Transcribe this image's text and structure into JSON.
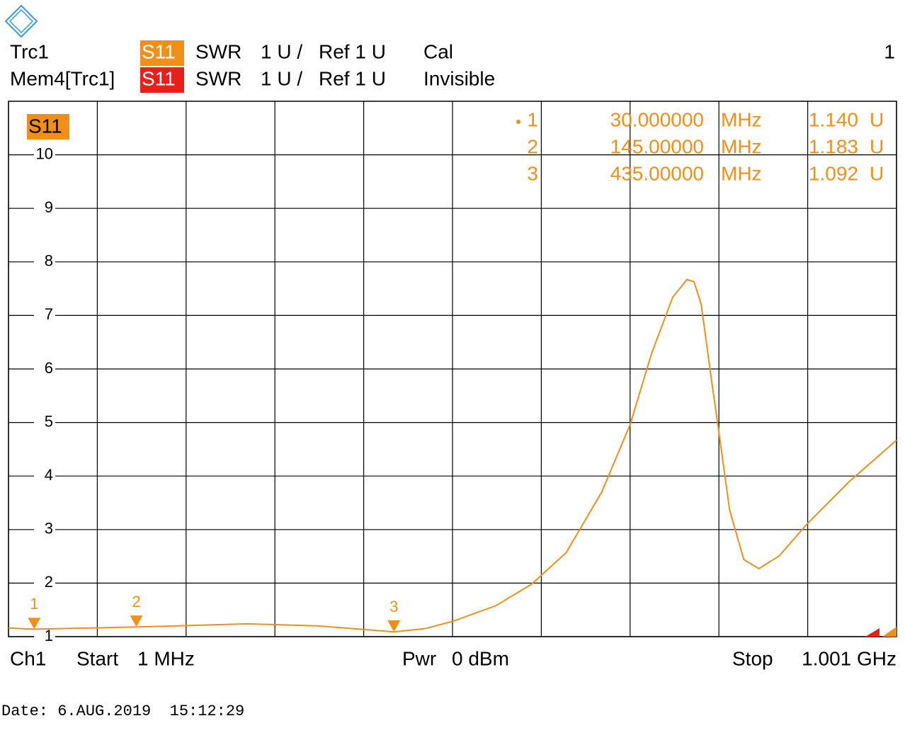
{
  "header": {
    "trace": "Trc1",
    "memory": "Mem4[Trc1]",
    "param": "S11",
    "format": "SWR",
    "scale": "1 U /",
    "ref": "Ref 1 U",
    "cal": "Cal",
    "mem_state": "Invisible",
    "channel_number": "1"
  },
  "footer": {
    "channel": "Ch1",
    "start_label": "Start",
    "start": "1 MHz",
    "power_label": "Pwr",
    "power": "0 dBm",
    "stop_label": "Stop",
    "stop": "1.001 GHz"
  },
  "date": "Date: 6.AUG.2019  15:12:29",
  "chart_data": {
    "type": "line",
    "trace_label": "S11",
    "color": "#f0901a",
    "x": [
      1,
      30,
      145,
      270,
      350,
      435,
      470,
      502,
      550,
      590,
      629,
      669,
      701,
      725,
      749,
      765,
      773,
      781,
      793,
      801,
      813,
      829,
      846,
      869,
      900,
      948,
      1001
    ],
    "values": [
      1.16,
      1.14,
      1.18,
      1.24,
      1.2,
      1.09,
      1.15,
      1.29,
      1.58,
      1.98,
      2.57,
      3.7,
      4.96,
      6.28,
      7.34,
      7.67,
      7.63,
      7.21,
      5.75,
      4.82,
      3.37,
      2.44,
      2.27,
      2.51,
      3.1,
      3.9,
      4.67
    ],
    "xlim": [
      1,
      1001
    ],
    "xticks": [
      1,
      101,
      201,
      301,
      401,
      501,
      601,
      701,
      801,
      901,
      1001
    ],
    "ylim": [
      1,
      11
    ],
    "yticks": [
      1,
      2,
      3,
      4,
      5,
      6,
      7,
      8,
      9,
      10
    ],
    "grid": true,
    "markers": [
      {
        "name": "1",
        "x": 30,
        "x_label": "30.000000",
        "x_unit": "MHz",
        "y": 1.14,
        "y_label": "1.140",
        "y_unit": "U"
      },
      {
        "name": "2",
        "x": 145,
        "x_label": "145.00000",
        "x_unit": "MHz",
        "y": 1.183,
        "y_label": "1.183",
        "y_unit": "U"
      },
      {
        "name": "3",
        "x": 435,
        "x_label": "435.00000",
        "x_unit": "MHz",
        "y": 1.092,
        "y_label": "1.092",
        "y_unit": "U"
      }
    ]
  }
}
